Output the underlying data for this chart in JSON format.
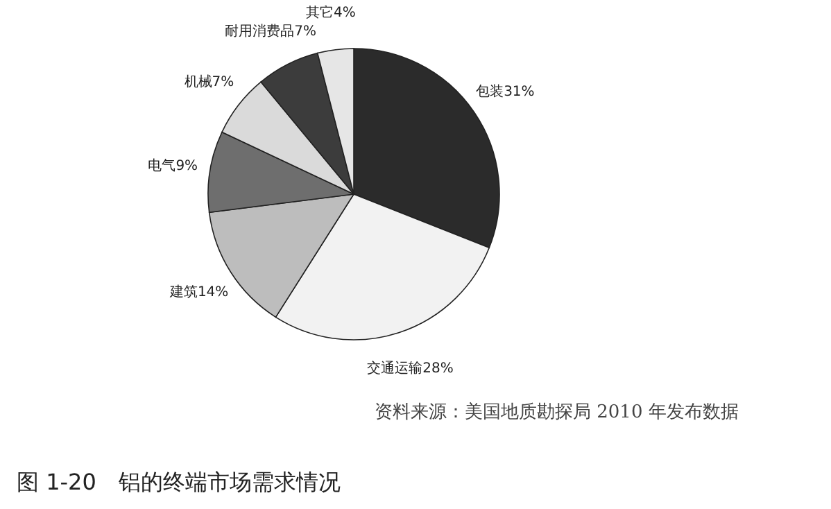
{
  "chart_data": {
    "type": "pie",
    "title": "图 1-20　铝的终端市场需求情况",
    "categories": [
      "包装",
      "交通运输",
      "建筑",
      "电气",
      "机械",
      "耐用消费品",
      "其它"
    ],
    "values": [
      31,
      28,
      14,
      9,
      7,
      7,
      4
    ],
    "value_labels": [
      "31%",
      "28%",
      "14%",
      "9%",
      "7%",
      "7%",
      "4%"
    ],
    "colors": [
      "#2b2b2b",
      "#f2f2f2",
      "#bdbdbd",
      "#6e6e6e",
      "#dadada",
      "#3c3c3c",
      "#e6e6e6"
    ],
    "annotations": [
      "资料来源：美国地质勘探局 2010 年发布数据"
    ]
  }
}
